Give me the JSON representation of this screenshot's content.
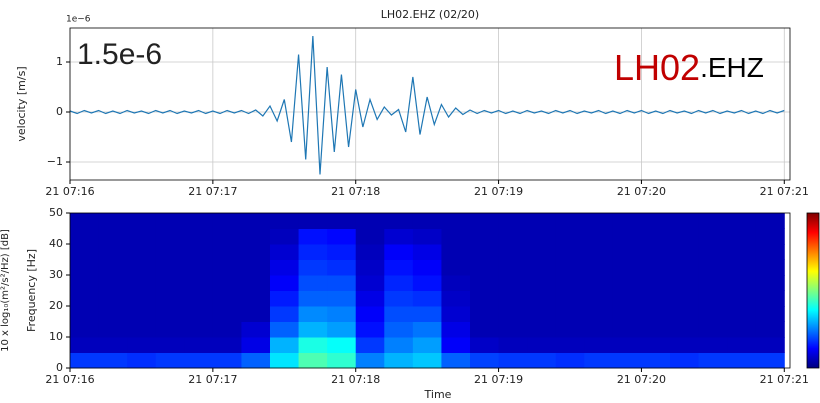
{
  "chart_data": [
    {
      "type": "line",
      "title": "LH02.EHZ (02/20)",
      "ylabel": "velocity [m/s]",
      "offset_label": "1e−6",
      "annotations": [
        {
          "text": "1.5e-6",
          "color": "#000000"
        },
        {
          "text": "LH02",
          "color": "#c00000"
        },
        {
          "text": ".EHZ",
          "color": "#000000"
        }
      ],
      "xlim": [
        0,
        5.04
      ],
      "ylim": [
        -1.36,
        1.68
      ],
      "grid": true,
      "xticks": [
        {
          "value": 0,
          "label": "21 07:16"
        },
        {
          "value": 1,
          "label": "21 07:17"
        },
        {
          "value": 2,
          "label": "21 07:18"
        },
        {
          "value": 3,
          "label": "21 07:19"
        },
        {
          "value": 4,
          "label": "21 07:20"
        },
        {
          "value": 5,
          "label": "21 07:21"
        }
      ],
      "yticks": [
        {
          "value": -1,
          "label": "−1"
        },
        0,
        1
      ],
      "x": [
        0,
        0.05,
        0.1,
        0.15,
        0.2,
        0.25,
        0.3,
        0.35,
        0.4,
        0.45,
        0.5,
        0.55,
        0.6,
        0.65,
        0.7,
        0.75,
        0.8,
        0.85,
        0.9,
        0.95,
        1,
        1.05,
        1.1,
        1.15,
        1.2,
        1.25,
        1.3,
        1.35,
        1.4,
        1.45,
        1.5,
        1.55,
        1.6,
        1.65,
        1.7,
        1.75,
        1.8,
        1.85,
        1.9,
        1.95,
        2,
        2.05,
        2.1,
        2.15,
        2.2,
        2.25,
        2.3,
        2.35,
        2.4,
        2.45,
        2.5,
        2.55,
        2.6,
        2.65,
        2.7,
        2.75,
        2.8,
        2.85,
        2.9,
        2.95,
        3,
        3.05,
        3.1,
        3.15,
        3.2,
        3.25,
        3.3,
        3.35,
        3.4,
        3.45,
        3.5,
        3.55,
        3.6,
        3.65,
        3.7,
        3.75,
        3.8,
        3.85,
        3.9,
        3.95,
        4,
        4.05,
        4.1,
        4.15,
        4.2,
        4.25,
        4.3,
        4.35,
        4.4,
        4.45,
        4.5,
        4.55,
        4.6,
        4.65,
        4.7,
        4.75,
        4.8,
        4.85,
        4.9,
        4.95,
        5
      ],
      "series": [
        {
          "color": "#1f77b4",
          "values": [
            0.02,
            -0.03,
            0.03,
            -0.02,
            0.03,
            -0.03,
            0.02,
            -0.03,
            0.03,
            -0.02,
            0.02,
            -0.03,
            0.03,
            -0.02,
            0.03,
            -0.03,
            0.02,
            -0.02,
            0.03,
            -0.03,
            0.02,
            -0.03,
            0.03,
            -0.02,
            0.03,
            -0.03,
            0.04,
            -0.08,
            0.12,
            -0.18,
            0.25,
            -0.6,
            1.15,
            -0.95,
            1.52,
            -1.25,
            0.9,
            -0.8,
            0.75,
            -0.7,
            0.45,
            -0.3,
            0.25,
            -0.15,
            0.1,
            -0.06,
            0.05,
            -0.4,
            0.7,
            -0.45,
            0.3,
            -0.25,
            0.15,
            -0.1,
            0.08,
            -0.05,
            0.04,
            -0.03,
            0.03,
            -0.02,
            0.03,
            -0.03,
            0.02,
            -0.03,
            0.03,
            -0.02,
            0.02,
            -0.03,
            0.03,
            -0.02,
            0.03,
            -0.03,
            0.02,
            -0.02,
            0.03,
            -0.03,
            0.02,
            -0.03,
            0.03,
            -0.02,
            0.03,
            -0.03,
            0.02,
            -0.03,
            0.03,
            -0.02,
            0.02,
            -0.03,
            0.03,
            -0.02,
            0.03,
            -0.03,
            0.02,
            -0.02,
            0.03,
            -0.03,
            0.02,
            -0.03,
            0.03,
            -0.02,
            0.03
          ]
        }
      ]
    },
    {
      "type": "heatmap",
      "xlabel": "Time",
      "ylabel": "Frequency [Hz]",
      "colorbar_label": "10 x log₁₀(m²/s²/Hz) [dB]",
      "colormap": "jet",
      "xlim": [
        0,
        5.04
      ],
      "ylim": [
        0,
        50
      ],
      "zlim": [
        0,
        1
      ],
      "xticks": [
        {
          "value": 0,
          "label": "21 07:16"
        },
        {
          "value": 1,
          "label": "21 07:17"
        },
        {
          "value": 2,
          "label": "21 07:18"
        },
        {
          "value": 3,
          "label": "21 07:19"
        },
        {
          "value": 4,
          "label": "21 07:20"
        },
        {
          "value": 5,
          "label": "21 07:21"
        }
      ],
      "yticks": [
        0,
        10,
        20,
        30,
        40,
        50
      ],
      "xbins": [
        0,
        0.2,
        0.4,
        0.6,
        0.8,
        1,
        1.2,
        1.4,
        1.6,
        1.8,
        2,
        2.2,
        2.4,
        2.6,
        2.8,
        3,
        3.2,
        3.4,
        3.6,
        3.8,
        4,
        4.2,
        4.4,
        4.6,
        4.8,
        5
      ],
      "ybins": [
        0,
        5,
        10,
        15,
        20,
        25,
        30,
        35,
        40,
        45,
        50
      ],
      "values": [
        [
          0.18,
          0.18,
          0.17,
          0.18,
          0.18,
          0.18,
          0.22,
          0.35,
          0.45,
          0.42,
          0.25,
          0.3,
          0.32,
          0.22,
          0.19,
          0.18,
          0.18,
          0.17,
          0.18,
          0.18,
          0.18,
          0.17,
          0.18,
          0.18,
          0.18
        ],
        [
          0.06,
          0.06,
          0.06,
          0.06,
          0.06,
          0.06,
          0.1,
          0.3,
          0.4,
          0.38,
          0.18,
          0.25,
          0.28,
          0.12,
          0.07,
          0.06,
          0.06,
          0.06,
          0.06,
          0.06,
          0.06,
          0.06,
          0.06,
          0.06,
          0.06
        ],
        [
          0.05,
          0.05,
          0.05,
          0.05,
          0.05,
          0.05,
          0.08,
          0.22,
          0.3,
          0.28,
          0.14,
          0.22,
          0.24,
          0.1,
          0.05,
          0.05,
          0.05,
          0.05,
          0.05,
          0.05,
          0.05,
          0.05,
          0.05,
          0.05,
          0.05
        ],
        [
          0.05,
          0.05,
          0.05,
          0.05,
          0.05,
          0.05,
          0.05,
          0.18,
          0.26,
          0.25,
          0.12,
          0.2,
          0.2,
          0.08,
          0.05,
          0.05,
          0.05,
          0.05,
          0.05,
          0.05,
          0.05,
          0.05,
          0.05,
          0.05,
          0.05
        ],
        [
          0.05,
          0.05,
          0.05,
          0.05,
          0.05,
          0.05,
          0.05,
          0.15,
          0.22,
          0.22,
          0.1,
          0.18,
          0.17,
          0.07,
          0.05,
          0.05,
          0.05,
          0.05,
          0.05,
          0.05,
          0.05,
          0.05,
          0.05,
          0.05,
          0.05
        ],
        [
          0.05,
          0.05,
          0.05,
          0.05,
          0.05,
          0.05,
          0.05,
          0.12,
          0.2,
          0.2,
          0.08,
          0.16,
          0.14,
          0.06,
          0.05,
          0.05,
          0.05,
          0.05,
          0.05,
          0.05,
          0.05,
          0.05,
          0.05,
          0.05,
          0.05
        ],
        [
          0.05,
          0.05,
          0.05,
          0.05,
          0.05,
          0.05,
          0.05,
          0.1,
          0.18,
          0.17,
          0.07,
          0.14,
          0.12,
          0.05,
          0.05,
          0.05,
          0.05,
          0.05,
          0.05,
          0.05,
          0.05,
          0.05,
          0.05,
          0.05,
          0.05
        ],
        [
          0.05,
          0.05,
          0.05,
          0.05,
          0.05,
          0.05,
          0.05,
          0.08,
          0.16,
          0.15,
          0.06,
          0.12,
          0.1,
          0.05,
          0.05,
          0.05,
          0.05,
          0.05,
          0.05,
          0.05,
          0.05,
          0.05,
          0.05,
          0.05,
          0.05
        ],
        [
          0.05,
          0.05,
          0.05,
          0.05,
          0.05,
          0.05,
          0.05,
          0.06,
          0.14,
          0.13,
          0.05,
          0.08,
          0.07,
          0.05,
          0.05,
          0.05,
          0.05,
          0.05,
          0.05,
          0.05,
          0.05,
          0.05,
          0.05,
          0.05,
          0.05
        ],
        [
          0.05,
          0.05,
          0.05,
          0.05,
          0.05,
          0.05,
          0.05,
          0.05,
          0.05,
          0.05,
          0.05,
          0.05,
          0.05,
          0.05,
          0.05,
          0.05,
          0.05,
          0.05,
          0.05,
          0.05,
          0.05,
          0.05,
          0.05,
          0.05,
          0.05
        ]
      ]
    }
  ]
}
